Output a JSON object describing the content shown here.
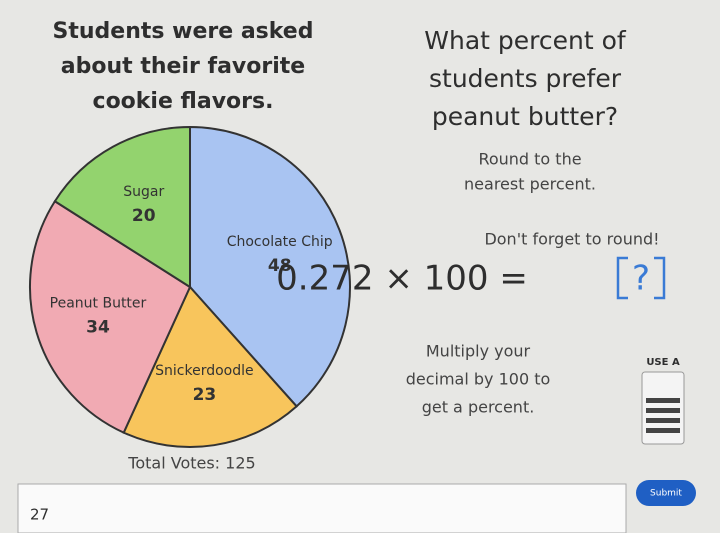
{
  "chart_data": {
    "type": "pie",
    "title_lines": [
      "Students were asked",
      "about their favorite",
      "cookie flavors."
    ],
    "categories": [
      "Chocolate Chip",
      "Snickerdoodle",
      "Peanut Butter",
      "Sugar"
    ],
    "values": [
      48,
      23,
      34,
      20
    ],
    "colors": [
      "#a9c4f2",
      "#f8c55c",
      "#f1aab3",
      "#93d36e"
    ],
    "footer": "Total Votes: 125"
  },
  "question": {
    "lines": [
      "What percent of",
      "students prefer",
      "peanut butter?"
    ]
  },
  "hint_round": {
    "lines": [
      "Round to the",
      "nearest percent."
    ]
  },
  "reminder": "Don't forget to round!",
  "equation": {
    "expression": "0.272 × 100 =",
    "placeholder": "?"
  },
  "hint_multiply": {
    "lines": [
      "Multiply your",
      "decimal by 100 to",
      "get a percent."
    ]
  },
  "calculator": {
    "label": "USE A"
  },
  "answer_input": {
    "value": "27"
  },
  "submit_button": {
    "label": "Submit"
  }
}
